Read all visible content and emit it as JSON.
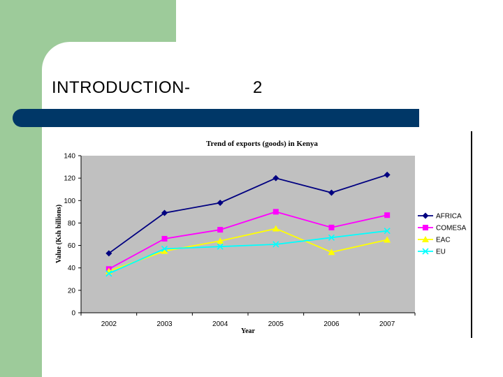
{
  "slide": {
    "title": "INTRODUCTION-",
    "title_number": "2"
  },
  "colors": {
    "green_block": "#9dcb9a",
    "title_bar": "#003767",
    "plot_background": "#c0c0c0"
  },
  "chart_data": {
    "type": "line",
    "title": "Trend of exports (goods) in Kenya",
    "xlabel": "Year",
    "ylabel": "Value (Ksh billions)",
    "categories": [
      "2002",
      "2003",
      "2004",
      "2005",
      "2006",
      "2007"
    ],
    "ylim": [
      0,
      140
    ],
    "yticks": [
      0,
      20,
      40,
      60,
      80,
      100,
      120,
      140
    ],
    "grid": false,
    "legend_position": "right",
    "series": [
      {
        "name": "AFRICA",
        "values": [
          53,
          89,
          98,
          120,
          107,
          123
        ],
        "color": "#000080",
        "marker": "diamond"
      },
      {
        "name": "COMESA",
        "values": [
          39,
          66,
          74,
          90,
          76,
          87
        ],
        "color": "#ff00ff",
        "marker": "square"
      },
      {
        "name": "EAC",
        "values": [
          37,
          55,
          64,
          75,
          54,
          65
        ],
        "color": "#ffff00",
        "marker": "triangle"
      },
      {
        "name": "EU",
        "values": [
          35,
          57,
          59,
          61,
          67,
          73
        ],
        "color": "#00ffff",
        "marker": "x"
      }
    ]
  }
}
